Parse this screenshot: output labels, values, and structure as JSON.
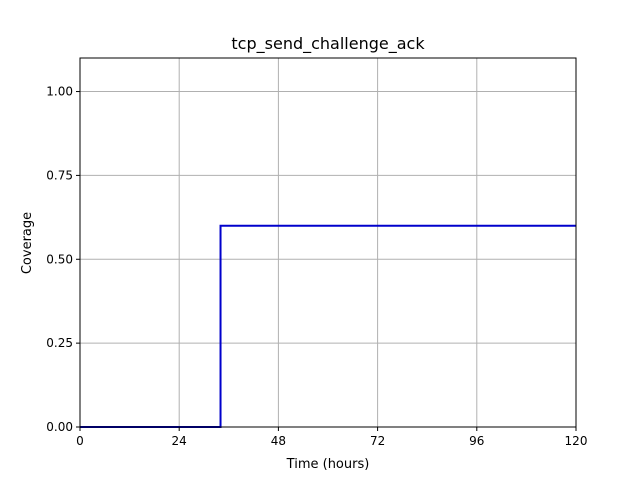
{
  "chart_data": {
    "type": "line",
    "title": "tcp_send_challenge_ack",
    "xlabel": "Time (hours)",
    "ylabel": "Coverage",
    "xlim": [
      0,
      120
    ],
    "ylim": [
      0,
      1.1
    ],
    "xticks": [
      0,
      24,
      48,
      72,
      96,
      120
    ],
    "xtick_labels": [
      "0",
      "24",
      "48",
      "72",
      "96",
      "120"
    ],
    "yticks": [
      0,
      0.25,
      0.5,
      0.75,
      1.0
    ],
    "ytick_labels": [
      "0.00",
      "0.25",
      "0.50",
      "0.75",
      "1.00"
    ],
    "grid": true,
    "legend": "none",
    "series": [
      {
        "color": "#0000cc",
        "step": true,
        "x": [
          0,
          34,
          34,
          120
        ],
        "y": [
          0,
          0,
          0.6,
          0.6
        ]
      }
    ]
  }
}
